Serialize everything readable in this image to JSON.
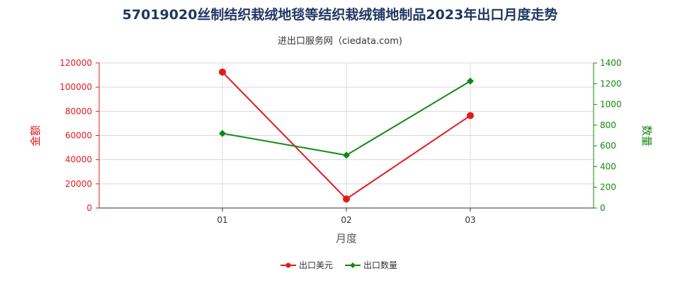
{
  "title": "57019020丝制结织栽绒地毯等结织栽绒铺地制品2023年出口月度走势",
  "subtitle": "进出口服务网（ciedata.com)",
  "chart_data": {
    "type": "line",
    "title": "57019020丝制结织栽绒地毯等结织栽绒铺地制品2023年出口月度走势",
    "subtitle": "进出口服务网（ciedata.com)",
    "xlabel": "月度",
    "ylabel_left": "金额",
    "ylabel_right": "数量",
    "categories": [
      "01",
      "02",
      "03"
    ],
    "y_left_lim": [
      0,
      120000
    ],
    "y_left_ticks": [
      "0",
      "20000",
      "40000",
      "60000",
      "80000",
      "100000",
      "120000"
    ],
    "y_right_lim": [
      0,
      1400
    ],
    "y_right_ticks": [
      "0",
      "200",
      "400",
      "600",
      "800",
      "1000",
      "1200",
      "1400"
    ],
    "grid": true,
    "legend_position": "bottom",
    "series": [
      {
        "name": "出口美元",
        "axis": "left",
        "color": "#e31a1c",
        "marker": "circle",
        "values": [
          112500,
          7500,
          76500
        ]
      },
      {
        "name": "出口数量",
        "axis": "right",
        "color": "#118811",
        "marker": "diamond",
        "values": [
          720,
          510,
          1225
        ]
      }
    ]
  },
  "colors": {
    "left_axis": "#e31a1c",
    "right_axis": "#118811",
    "grid": "#d9d9d9",
    "title": "#1f3763"
  }
}
